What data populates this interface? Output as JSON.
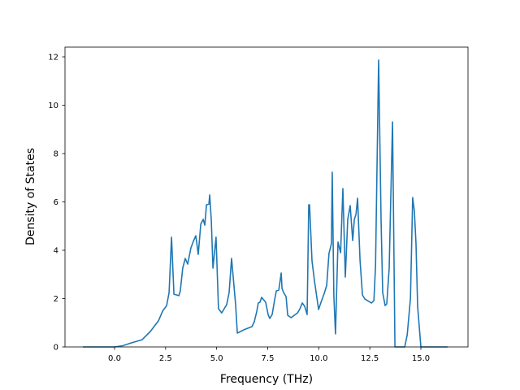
{
  "chart_data": {
    "type": "line",
    "title": "",
    "xlabel": "Frequency (THz)",
    "ylabel": "Density of States",
    "xlim": [
      -2.3,
      17.4
    ],
    "ylim": [
      0,
      12.4
    ],
    "xticks": [
      0.0,
      2.5,
      5.0,
      7.5,
      10.0,
      12.5,
      15.0
    ],
    "xtick_labels": [
      "0.0",
      "2.5",
      "5.0",
      "7.5",
      "10.0",
      "12.5",
      "15.0"
    ],
    "yticks": [
      0,
      2,
      4,
      6,
      8,
      10,
      12
    ],
    "ytick_labels": [
      "0",
      "2",
      "4",
      "6",
      "8",
      "10",
      "12"
    ],
    "grid": false,
    "legend": null,
    "line_color": "#1f77b4",
    "series": [
      {
        "name": "DOS",
        "x": [
          -1.55,
          0.0,
          0.4,
          0.76,
          1.35,
          1.75,
          2.15,
          2.35,
          2.55,
          2.67,
          2.79,
          2.91,
          3.03,
          3.15,
          3.22,
          3.34,
          3.46,
          3.58,
          3.74,
          3.86,
          3.98,
          4.1,
          4.22,
          4.34,
          4.42,
          4.5,
          4.62,
          4.66,
          4.74,
          4.82,
          4.97,
          5.09,
          5.25,
          5.49,
          5.61,
          5.73,
          5.93,
          6.01,
          6.33,
          6.73,
          6.84,
          6.96,
          7.04,
          7.12,
          7.2,
          7.4,
          7.52,
          7.6,
          7.72,
          7.84,
          7.92,
          8.04,
          8.16,
          8.2,
          8.28,
          8.4,
          8.48,
          8.64,
          8.96,
          9.08,
          9.19,
          9.31,
          9.43,
          9.51,
          9.55,
          9.67,
          9.79,
          9.99,
          10.11,
          10.27,
          10.39,
          10.5,
          10.62,
          10.66,
          10.74,
          10.82,
          10.94,
          11.07,
          11.18,
          11.3,
          11.42,
          11.54,
          11.66,
          11.74,
          11.82,
          11.9,
          12.02,
          12.14,
          12.26,
          12.58,
          12.7,
          12.78,
          12.93,
          13.05,
          13.13,
          13.25,
          13.33,
          13.45,
          13.61,
          13.73,
          14.21,
          14.33,
          14.49,
          14.6,
          14.68,
          14.76,
          14.84,
          15.0,
          16.31
        ],
        "y": [
          0.0,
          0.0,
          0.05,
          0.15,
          0.3,
          0.64,
          1.08,
          1.48,
          1.71,
          2.25,
          4.54,
          2.18,
          2.15,
          2.12,
          2.32,
          3.26,
          3.66,
          3.43,
          4.1,
          4.37,
          4.6,
          3.83,
          5.08,
          5.28,
          5.04,
          5.88,
          5.91,
          6.29,
          5.21,
          3.26,
          4.54,
          1.58,
          1.41,
          1.75,
          2.25,
          3.66,
          1.75,
          0.57,
          0.71,
          0.84,
          1.04,
          1.45,
          1.82,
          1.85,
          2.05,
          1.85,
          1.34,
          1.18,
          1.34,
          1.95,
          2.32,
          2.35,
          3.06,
          2.42,
          2.25,
          2.08,
          1.31,
          1.21,
          1.41,
          1.58,
          1.82,
          1.68,
          1.34,
          5.88,
          5.88,
          3.56,
          2.72,
          1.55,
          1.85,
          2.22,
          2.55,
          3.87,
          4.27,
          7.23,
          2.12,
          0.54,
          4.34,
          3.9,
          6.55,
          2.89,
          5.28,
          5.85,
          4.4,
          5.28,
          5.48,
          6.15,
          3.6,
          2.15,
          1.98,
          1.82,
          1.92,
          3.36,
          11.87,
          5.28,
          2.25,
          1.71,
          1.78,
          3.26,
          9.31,
          0.0,
          0.0,
          0.5,
          2.02,
          6.18,
          5.61,
          4.27,
          1.68,
          0.0,
          0.0
        ]
      }
    ]
  }
}
